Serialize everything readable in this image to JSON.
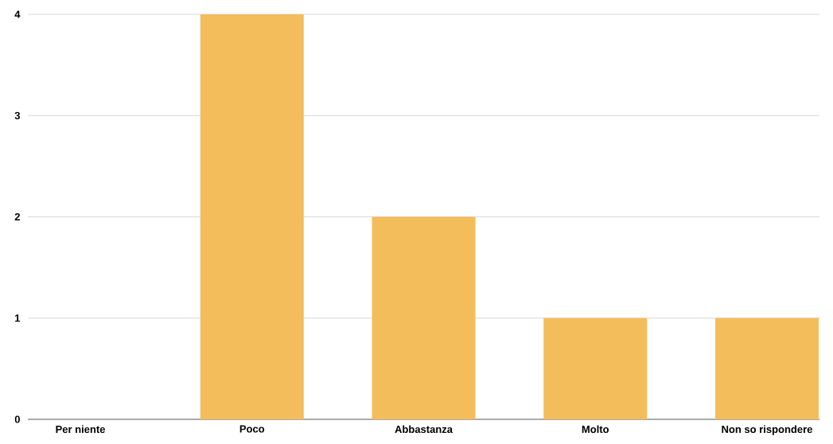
{
  "chart_data": {
    "type": "bar",
    "categories": [
      "Per niente",
      "Poco",
      "Abbastanza",
      "Molto",
      "Non so rispondere"
    ],
    "values": [
      0,
      4,
      2,
      1,
      1
    ],
    "color": "#f4bd5b",
    "ylim": [
      0,
      4
    ],
    "yticks": [
      0,
      1,
      2,
      3,
      4
    ],
    "grid": "y"
  }
}
